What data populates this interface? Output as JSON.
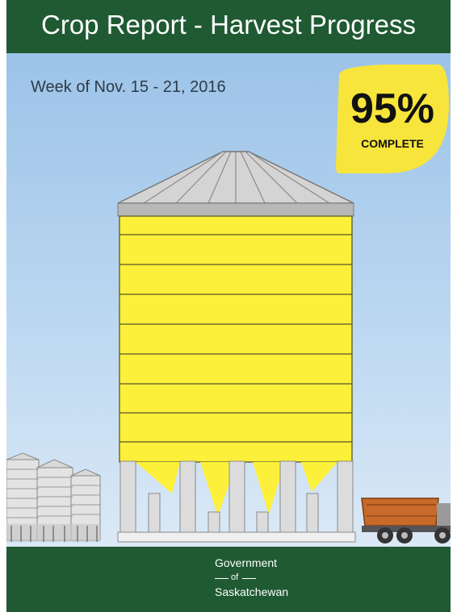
{
  "header": {
    "title": "Crop Report - Harvest Progress"
  },
  "subtitle": {
    "week": "Week of Nov. 15 - 21, 2016"
  },
  "badge": {
    "percent_text": "95%",
    "label": "COMPLETE"
  },
  "progress": {
    "harvest_complete_percent": 95
  },
  "footer": {
    "line1": "Government",
    "line2": "of",
    "line3": "Saskatchewan"
  },
  "colors": {
    "brand_green": "#1f5a33",
    "grain_yellow": "#fdf03a",
    "badge_yellow": "#f7e53b"
  }
}
